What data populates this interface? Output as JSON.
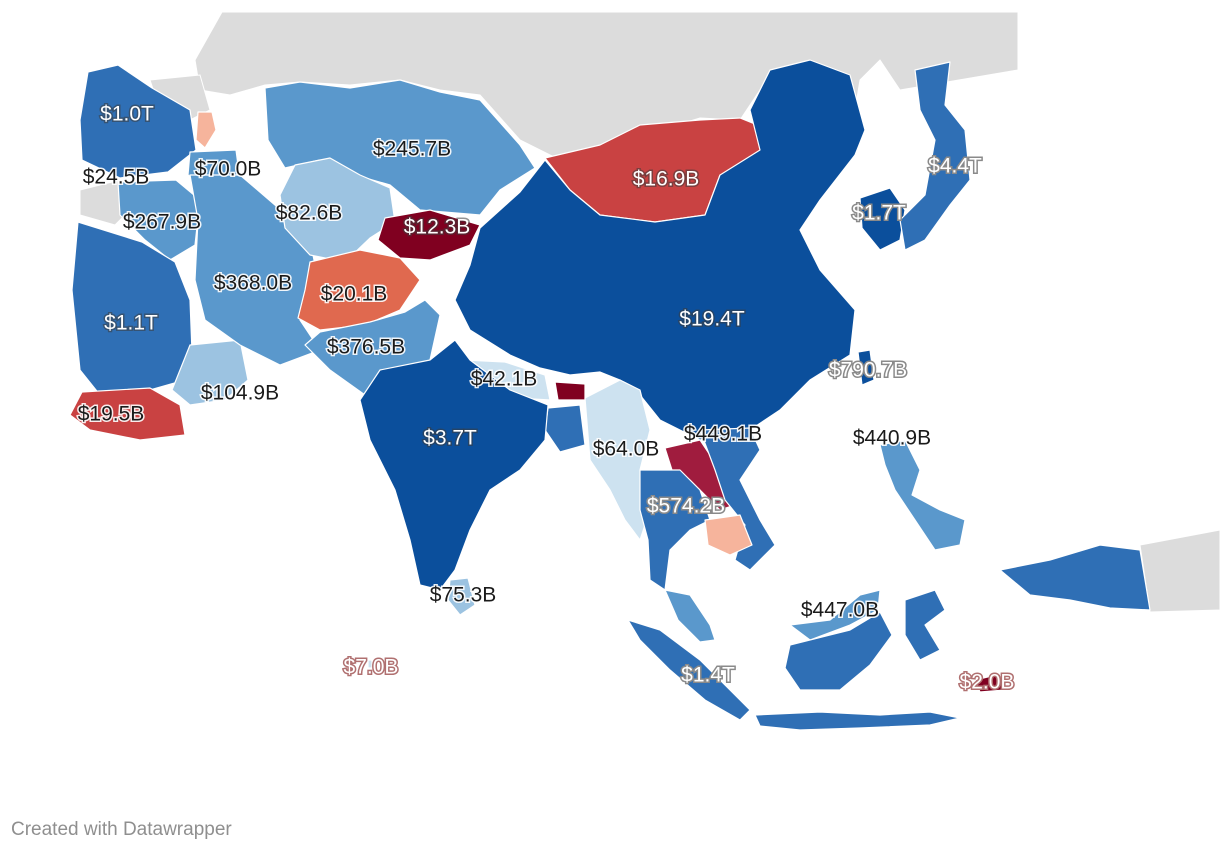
{
  "footer": {
    "credit": "Created with Datawrapper"
  },
  "colors": {
    "dark_blue": "#0b4f9c",
    "mid_blue": "#2f6fb5",
    "blue": "#5a98cc",
    "light_blue": "#9cc3e1",
    "pale_blue": "#cde2f0",
    "pale_salmon": "#f6b49c",
    "salmon": "#e0694f",
    "red": "#c94242",
    "dark_red": "#a01c3e",
    "maroon": "#800020",
    "no_data": "#dcdcdc"
  },
  "labels": [
    {
      "id": "turkey",
      "text": "$1.0T"
    },
    {
      "id": "georgia",
      "text": "$24.5B"
    },
    {
      "id": "armenia",
      "text": "$70.0B"
    },
    {
      "id": "kazakhstan",
      "text": "$245.7B"
    },
    {
      "id": "uzbekistan",
      "text": "$82.6B"
    },
    {
      "id": "kyrgyzstan",
      "text": "$12.3B"
    },
    {
      "id": "mongolia",
      "text": "$16.9B"
    },
    {
      "id": "iraq",
      "text": "$267.9B"
    },
    {
      "id": "iran",
      "text": "$368.0B"
    },
    {
      "id": "afghanistan",
      "text": "$20.1B"
    },
    {
      "id": "saudi_arabia",
      "text": "$1.1T"
    },
    {
      "id": "pakistan",
      "text": "$376.5B"
    },
    {
      "id": "china",
      "text": "$19.4T"
    },
    {
      "id": "japan",
      "text": "$4.4T"
    },
    {
      "id": "korea",
      "text": "$1.7T"
    },
    {
      "id": "taiwan",
      "text": "$790.7B"
    },
    {
      "id": "nepal",
      "text": "$42.1B"
    },
    {
      "id": "oman",
      "text": "$104.9B"
    },
    {
      "id": "yemen",
      "text": "$19.5B"
    },
    {
      "id": "india",
      "text": "$3.7T"
    },
    {
      "id": "vietnam",
      "text": "$449.1B"
    },
    {
      "id": "myanmar",
      "text": "$64.0B"
    },
    {
      "id": "thailand",
      "text": "$574.2B"
    },
    {
      "id": "philippines",
      "text": "$440.9B"
    },
    {
      "id": "sri_lanka",
      "text": "$75.3B"
    },
    {
      "id": "malaysia",
      "text": "$447.0B"
    },
    {
      "id": "maldives",
      "text": "$7.0B"
    },
    {
      "id": "indonesia",
      "text": "$1.4T"
    },
    {
      "id": "timor_leste",
      "text": "$2.0B"
    }
  ]
}
